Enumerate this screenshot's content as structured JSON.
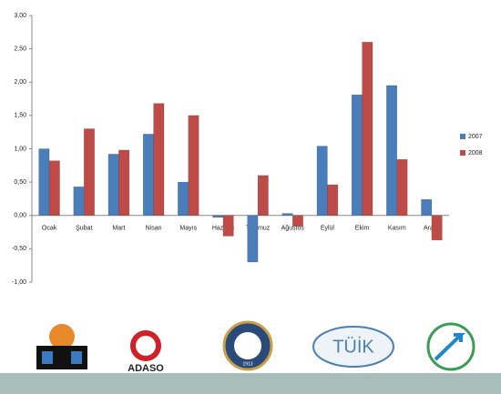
{
  "chart_data": {
    "type": "bar",
    "categories": [
      "Ocak",
      "Şubat",
      "Mart",
      "Nisan",
      "Mayıs",
      "Haziran",
      "Temmuz",
      "Ağustos",
      "Eylül",
      "Ekim",
      "Kasım",
      "Aralık"
    ],
    "series": [
      {
        "name": "2007",
        "color": "#4a7ebb",
        "values": [
          1.0,
          0.43,
          0.92,
          1.22,
          0.5,
          -0.03,
          -0.7,
          0.03,
          1.04,
          1.81,
          1.95,
          0.24
        ]
      },
      {
        "name": "2008",
        "color": "#be4b48",
        "values": [
          0.82,
          1.3,
          0.98,
          1.68,
          1.5,
          -0.31,
          0.6,
          -0.16,
          0.46,
          2.6,
          0.84,
          -0.37
        ]
      }
    ],
    "ylim": [
      -1,
      3
    ],
    "yticks": [
      {
        "value": -1,
        "label": "-1,00"
      },
      {
        "value": -0.5,
        "label": "-0,50"
      },
      {
        "value": 0,
        "label": "0,00"
      },
      {
        "value": 0.5,
        "label": "0,50"
      },
      {
        "value": 1,
        "label": "1,00"
      },
      {
        "value": 1.5,
        "label": "1,50"
      },
      {
        "value": 2,
        "label": "2,00"
      },
      {
        "value": 2.5,
        "label": "2,50"
      },
      {
        "value": 3,
        "label": "3,00"
      }
    ],
    "grid": false,
    "legend": "right"
  },
  "logos": {
    "adaso": "ADASO",
    "borsa_year": "1913",
    "tuik": "TÜİK"
  }
}
